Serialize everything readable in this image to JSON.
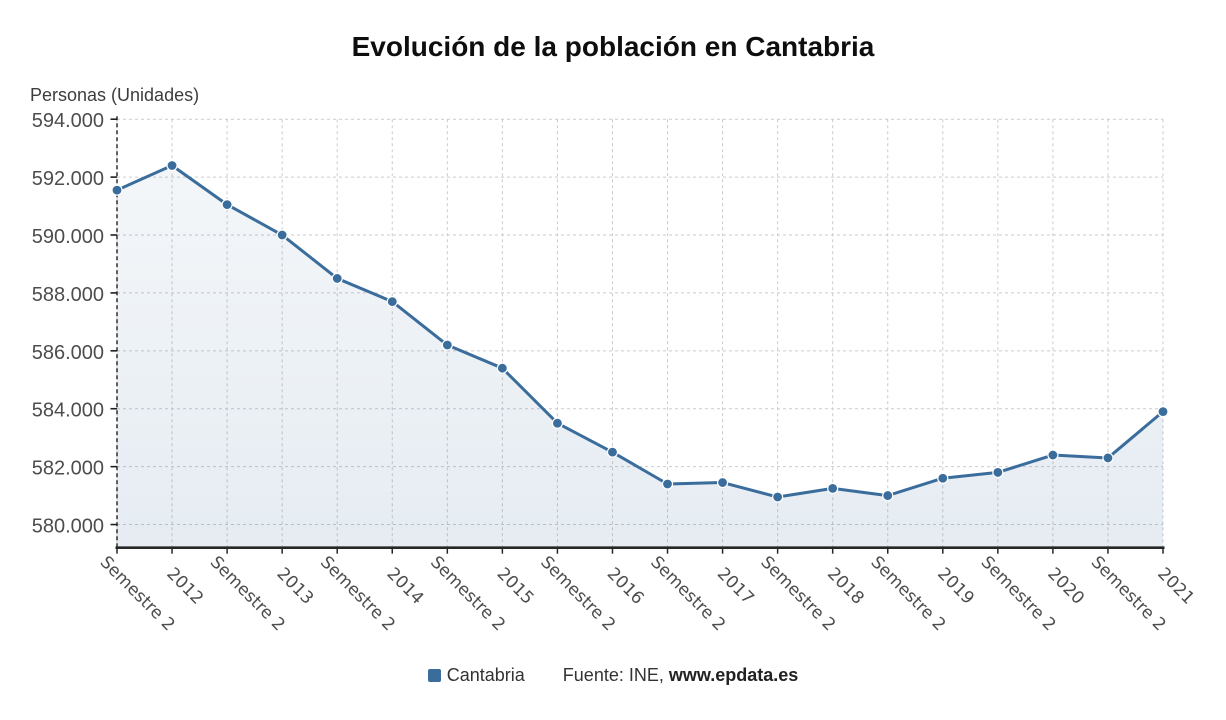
{
  "chart_data": {
    "type": "line",
    "title": "Evolución de la población en Cantabria",
    "y_axis_title": "Personas (Unidades)",
    "xlabel": "",
    "ylabel": "Personas (Unidades)",
    "categories": [
      "Semestre 2",
      "2012",
      "Semestre 2",
      "2013",
      "Semestre 2",
      "2014",
      "Semestre 2",
      "2015",
      "Semestre 2",
      "2016",
      "Semestre 2",
      "2017",
      "Semestre 2",
      "2018",
      "Semestre 2",
      "2019",
      "Semestre 2",
      "2020",
      "Semestre 2",
      "2021"
    ],
    "series": [
      {
        "name": "Cantabria",
        "color": "#3a6d9c",
        "values": [
          591550,
          592400,
          591050,
          590000,
          588500,
          587700,
          586200,
          585400,
          583500,
          582500,
          581400,
          581450,
          580950,
          581250,
          581000,
          581600,
          581800,
          582400,
          582300,
          583900
        ]
      }
    ],
    "yticks": [
      580000,
      582000,
      584000,
      586000,
      588000,
      590000,
      592000,
      594000
    ],
    "ytick_labels": [
      "580.000",
      "582.000",
      "584.000",
      "586.000",
      "588.000",
      "590.000",
      "592.000",
      "594.000"
    ],
    "ylim": [
      579200,
      594000
    ],
    "grid": true,
    "grid_style": "dashed",
    "legend_position": "bottom",
    "marker": "circle",
    "area_fill": true
  },
  "legend": {
    "series_label": "Cantabria"
  },
  "source": {
    "prefix": "Fuente: INE, ",
    "site": "www.epdata.es"
  },
  "colors": {
    "series": "#3a6d9c",
    "grid": "#cbcbcb",
    "axis": "#262626",
    "tick_text": "#4d4d4d",
    "title_text": "#0e0e0e"
  }
}
